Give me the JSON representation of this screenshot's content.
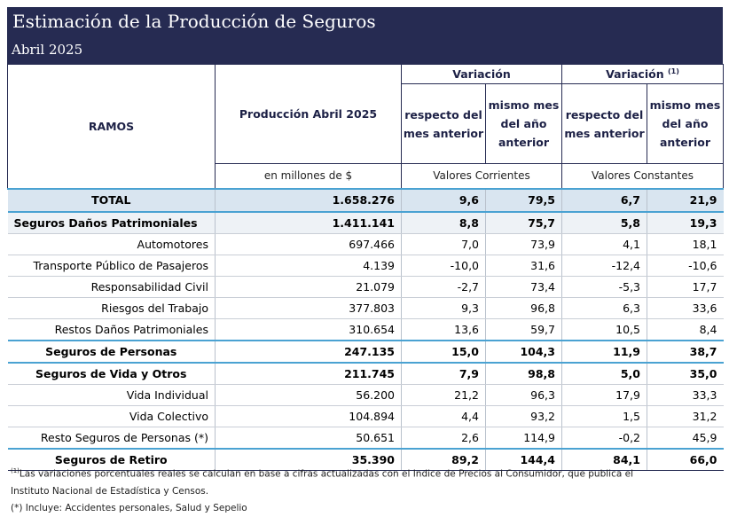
{
  "header": {
    "title": "Estimación de la Producción de Seguros",
    "subtitle": "Abril 2025"
  },
  "columns": {
    "ramos": "RAMOS",
    "produccion": "Producción Abril 2025",
    "variacion": "Variación",
    "variacion_real": "Variación",
    "variacion_real_note": "(1)",
    "respecto_mes_anterior": "respecto del mes anterior",
    "mismo_mes_anio_anterior": "mismo mes del año anterior",
    "unidad_produccion": "en millones de $",
    "valores_corrientes": "Valores Corrientes",
    "valores_constantes": "Valores Constantes"
  },
  "rows": [
    {
      "name": "TOTAL",
      "prod": "1.658.276",
      "c1": "9,6",
      "c2": "79,5",
      "k1": "6,7",
      "k2": "21,9"
    },
    {
      "name": "Seguros Daños Patrimoniales",
      "prod": "1.411.141",
      "c1": "8,8",
      "c2": "75,7",
      "k1": "5,8",
      "k2": "19,3"
    },
    {
      "name": "Automotores",
      "prod": "697.466",
      "c1": "7,0",
      "c2": "73,9",
      "k1": "4,1",
      "k2": "18,1"
    },
    {
      "name": "Transporte Público de Pasajeros",
      "prod": "4.139",
      "c1": "-10,0",
      "c2": "31,6",
      "k1": "-12,4",
      "k2": "-10,6"
    },
    {
      "name": "Responsabilidad Civil",
      "prod": "21.079",
      "c1": "-2,7",
      "c2": "73,4",
      "k1": "-5,3",
      "k2": "17,7"
    },
    {
      "name": "Riesgos del Trabajo",
      "prod": "377.803",
      "c1": "9,3",
      "c2": "96,8",
      "k1": "6,3",
      "k2": "33,6"
    },
    {
      "name": "Restos Daños Patrimoniales",
      "prod": "310.654",
      "c1": "13,6",
      "c2": "59,7",
      "k1": "10,5",
      "k2": "8,4"
    },
    {
      "name": "Seguros de Personas",
      "prod": "247.135",
      "c1": "15,0",
      "c2": "104,3",
      "k1": "11,9",
      "k2": "38,7"
    },
    {
      "name": "Seguros de Vida y Otros",
      "prod": "211.745",
      "c1": "7,9",
      "c2": "98,8",
      "k1": "5,0",
      "k2": "35,0"
    },
    {
      "name": "Vida Individual",
      "prod": "56.200",
      "c1": "21,2",
      "c2": "96,3",
      "k1": "17,9",
      "k2": "33,3"
    },
    {
      "name": "Vida Colectivo",
      "prod": "104.894",
      "c1": "4,4",
      "c2": "93,2",
      "k1": "1,5",
      "k2": "31,2"
    },
    {
      "name": "Resto Seguros de Personas (*)",
      "prod": "50.651",
      "c1": "2,6",
      "c2": "114,9",
      "k1": "-0,2",
      "k2": "45,9"
    },
    {
      "name": "Seguros de Retiro",
      "prod": "35.390",
      "c1": "89,2",
      "c2": "144,4",
      "k1": "84,1",
      "k2": "66,0"
    }
  ],
  "footnotes": {
    "note1_marker": "(1)",
    "note1": "Las variaciones porcentuales reales se calculan en base a cifras actualizadas con  el Indice de Precios al Consumidor, que publica el",
    "note1_cont": "Instituto Nacional de Estadística y  Censos.",
    "note2": "(*) Incluye: Accidentes personales, Salud y Sepelio"
  }
}
